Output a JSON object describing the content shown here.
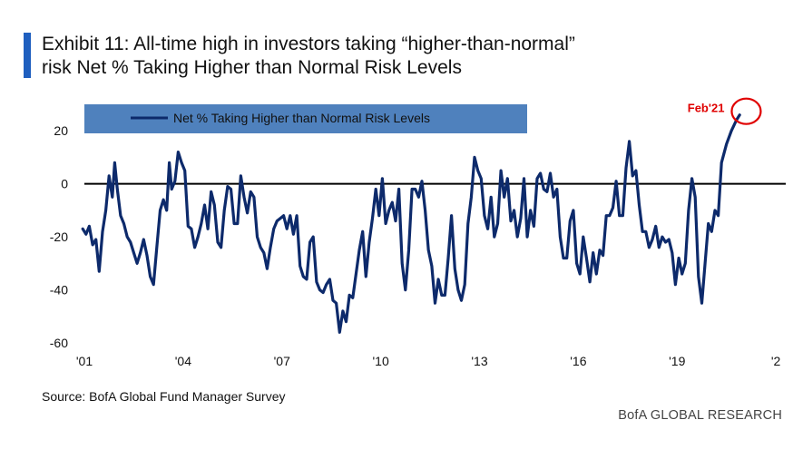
{
  "header": {
    "title": "Exhibit 11: All-time high in investors taking “higher-than-normal” risk Net % Taking Higher than Normal Risk Levels"
  },
  "footer": {
    "source": "Source: BofA Global Fund Manager Survey",
    "brand": "BofA GLOBAL RESEARCH"
  },
  "colors": {
    "accent_bar": "#1f5fbf",
    "series_line": "#0d2a6b",
    "legend_bg": "#4f81bd",
    "annotation": "#e00000",
    "zero_line": "#000000"
  },
  "chart_data": {
    "type": "line",
    "title": "",
    "xlabel": "",
    "ylabel": "",
    "xlim": [
      2001.0,
      2022.3
    ],
    "ylim": [
      -60,
      30
    ],
    "yticks": [
      -60,
      -40,
      -20,
      0,
      20
    ],
    "ytick_labels": [
      "-60",
      "-40",
      "-20",
      "0",
      "20"
    ],
    "xticks": [
      2001,
      2004,
      2007,
      2010,
      2013,
      2016,
      2019,
      2022
    ],
    "xtick_labels": [
      "'01",
      "'04",
      "'07",
      "'10",
      "'13",
      "'16",
      "'19",
      "'2"
    ],
    "grid": false,
    "zero_line": true,
    "legend": {
      "position": "top-left",
      "entries": [
        "Net % Taking Higher than Normal Risk Levels"
      ]
    },
    "annotations": [
      {
        "text": "Feb'21",
        "x": 2021.1,
        "y": 26,
        "style": "red circle"
      }
    ],
    "series": [
      {
        "name": "Net % Taking Higher than Normal Risk Levels",
        "points": [
          [
            2000.95,
            -17
          ],
          [
            2001.05,
            -19
          ],
          [
            2001.15,
            -16
          ],
          [
            2001.25,
            -23
          ],
          [
            2001.35,
            -21
          ],
          [
            2001.45,
            -33
          ],
          [
            2001.55,
            -18
          ],
          [
            2001.65,
            -10
          ],
          [
            2001.75,
            3
          ],
          [
            2001.85,
            -5
          ],
          [
            2001.92,
            8
          ],
          [
            2002.0,
            -2
          ],
          [
            2002.1,
            -12
          ],
          [
            2002.2,
            -15
          ],
          [
            2002.3,
            -20
          ],
          [
            2002.4,
            -22
          ],
          [
            2002.5,
            -26
          ],
          [
            2002.6,
            -30
          ],
          [
            2002.7,
            -26
          ],
          [
            2002.8,
            -21
          ],
          [
            2002.9,
            -27
          ],
          [
            2003.0,
            -35
          ],
          [
            2003.1,
            -38
          ],
          [
            2003.2,
            -24
          ],
          [
            2003.3,
            -10
          ],
          [
            2003.4,
            -6
          ],
          [
            2003.5,
            -10
          ],
          [
            2003.58,
            8
          ],
          [
            2003.65,
            -2
          ],
          [
            2003.75,
            1
          ],
          [
            2003.85,
            12
          ],
          [
            2003.95,
            8
          ],
          [
            2004.05,
            5
          ],
          [
            2004.15,
            -16
          ],
          [
            2004.25,
            -17
          ],
          [
            2004.35,
            -24
          ],
          [
            2004.45,
            -20
          ],
          [
            2004.55,
            -15
          ],
          [
            2004.65,
            -8
          ],
          [
            2004.75,
            -17
          ],
          [
            2004.85,
            -3
          ],
          [
            2004.95,
            -8
          ],
          [
            2005.05,
            -22
          ],
          [
            2005.15,
            -24
          ],
          [
            2005.25,
            -10
          ],
          [
            2005.35,
            -1
          ],
          [
            2005.45,
            -2
          ],
          [
            2005.55,
            -15
          ],
          [
            2005.65,
            -15
          ],
          [
            2005.75,
            3
          ],
          [
            2005.85,
            -5
          ],
          [
            2005.95,
            -11
          ],
          [
            2006.05,
            -3
          ],
          [
            2006.15,
            -5
          ],
          [
            2006.25,
            -20
          ],
          [
            2006.35,
            -24
          ],
          [
            2006.45,
            -26
          ],
          [
            2006.55,
            -32
          ],
          [
            2006.65,
            -24
          ],
          [
            2006.75,
            -17
          ],
          [
            2006.85,
            -14
          ],
          [
            2006.95,
            -13
          ],
          [
            2007.05,
            -12
          ],
          [
            2007.15,
            -17
          ],
          [
            2007.25,
            -12
          ],
          [
            2007.35,
            -19
          ],
          [
            2007.45,
            -12
          ],
          [
            2007.55,
            -31
          ],
          [
            2007.65,
            -35
          ],
          [
            2007.75,
            -36
          ],
          [
            2007.85,
            -22
          ],
          [
            2007.95,
            -20
          ],
          [
            2008.05,
            -37
          ],
          [
            2008.15,
            -40
          ],
          [
            2008.25,
            -41
          ],
          [
            2008.35,
            -38
          ],
          [
            2008.45,
            -36
          ],
          [
            2008.55,
            -44
          ],
          [
            2008.65,
            -45
          ],
          [
            2008.75,
            -56
          ],
          [
            2008.85,
            -48
          ],
          [
            2008.95,
            -52
          ],
          [
            2009.05,
            -42
          ],
          [
            2009.15,
            -43
          ],
          [
            2009.25,
            -34
          ],
          [
            2009.35,
            -25
          ],
          [
            2009.45,
            -18
          ],
          [
            2009.55,
            -35
          ],
          [
            2009.65,
            -22
          ],
          [
            2009.75,
            -13
          ],
          [
            2009.85,
            -2
          ],
          [
            2009.95,
            -12
          ],
          [
            2010.05,
            2
          ],
          [
            2010.15,
            -15
          ],
          [
            2010.25,
            -10
          ],
          [
            2010.35,
            -7
          ],
          [
            2010.45,
            -14
          ],
          [
            2010.55,
            -2
          ],
          [
            2010.65,
            -30
          ],
          [
            2010.75,
            -40
          ],
          [
            2010.85,
            -25
          ],
          [
            2010.95,
            -2
          ],
          [
            2011.05,
            -2
          ],
          [
            2011.15,
            -5
          ],
          [
            2011.25,
            1
          ],
          [
            2011.35,
            -10
          ],
          [
            2011.45,
            -25
          ],
          [
            2011.55,
            -31
          ],
          [
            2011.65,
            -45
          ],
          [
            2011.75,
            -36
          ],
          [
            2011.85,
            -42
          ],
          [
            2011.95,
            -42
          ],
          [
            2012.05,
            -28
          ],
          [
            2012.15,
            -12
          ],
          [
            2012.25,
            -32
          ],
          [
            2012.35,
            -40
          ],
          [
            2012.45,
            -44
          ],
          [
            2012.55,
            -38
          ],
          [
            2012.65,
            -15
          ],
          [
            2012.75,
            -5
          ],
          [
            2012.85,
            10
          ],
          [
            2012.95,
            5
          ],
          [
            2013.05,
            2
          ],
          [
            2013.15,
            -12
          ],
          [
            2013.25,
            -17
          ],
          [
            2013.35,
            -5
          ],
          [
            2013.45,
            -20
          ],
          [
            2013.55,
            -15
          ],
          [
            2013.65,
            5
          ],
          [
            2013.75,
            -5
          ],
          [
            2013.85,
            2
          ],
          [
            2013.95,
            -14
          ],
          [
            2014.05,
            -10
          ],
          [
            2014.15,
            -20
          ],
          [
            2014.25,
            -13
          ],
          [
            2014.35,
            2
          ],
          [
            2014.45,
            -20
          ],
          [
            2014.55,
            -10
          ],
          [
            2014.65,
            -16
          ],
          [
            2014.75,
            2
          ],
          [
            2014.85,
            4
          ],
          [
            2014.95,
            -2
          ],
          [
            2015.05,
            -3
          ],
          [
            2015.15,
            4
          ],
          [
            2015.25,
            -5
          ],
          [
            2015.35,
            -2
          ],
          [
            2015.45,
            -20
          ],
          [
            2015.55,
            -28
          ],
          [
            2015.65,
            -28
          ],
          [
            2015.75,
            -14
          ],
          [
            2015.85,
            -10
          ],
          [
            2015.95,
            -30
          ],
          [
            2016.05,
            -34
          ],
          [
            2016.15,
            -20
          ],
          [
            2016.25,
            -28
          ],
          [
            2016.35,
            -37
          ],
          [
            2016.45,
            -26
          ],
          [
            2016.55,
            -34
          ],
          [
            2016.65,
            -25
          ],
          [
            2016.75,
            -27
          ],
          [
            2016.85,
            -12
          ],
          [
            2016.95,
            -12
          ],
          [
            2017.05,
            -9
          ],
          [
            2017.15,
            1
          ],
          [
            2017.25,
            -12
          ],
          [
            2017.35,
            -12
          ],
          [
            2017.45,
            6
          ],
          [
            2017.55,
            16
          ],
          [
            2017.65,
            3
          ],
          [
            2017.75,
            5
          ],
          [
            2017.85,
            -8
          ],
          [
            2017.95,
            -18
          ],
          [
            2018.05,
            -18
          ],
          [
            2018.15,
            -24
          ],
          [
            2018.25,
            -21
          ],
          [
            2018.35,
            -16
          ],
          [
            2018.45,
            -24
          ],
          [
            2018.55,
            -20
          ],
          [
            2018.65,
            -22
          ],
          [
            2018.75,
            -21
          ],
          [
            2018.85,
            -26
          ],
          [
            2018.95,
            -38
          ],
          [
            2019.05,
            -28
          ],
          [
            2019.15,
            -34
          ],
          [
            2019.25,
            -30
          ],
          [
            2019.35,
            -10
          ],
          [
            2019.45,
            2
          ],
          [
            2019.55,
            -5
          ],
          [
            2019.65,
            -35
          ],
          [
            2019.75,
            -45
          ],
          [
            2019.85,
            -30
          ],
          [
            2019.95,
            -15
          ],
          [
            2020.05,
            -18
          ],
          [
            2020.15,
            -10
          ],
          [
            2020.25,
            -12
          ],
          [
            2020.35,
            8
          ],
          [
            2020.5,
            15
          ],
          [
            2020.65,
            20
          ],
          [
            2020.8,
            24
          ],
          [
            2020.9,
            26
          ]
        ]
      }
    ]
  }
}
